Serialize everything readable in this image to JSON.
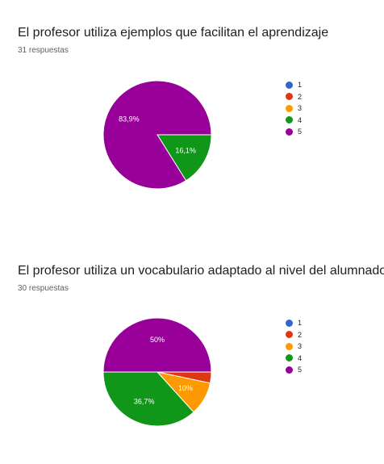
{
  "chart_data": [
    {
      "type": "pie",
      "title": "El profesor utiliza ejemplos que facilitan el aprendizaje",
      "subtitle": "31 respuestas",
      "categories": [
        "1",
        "2",
        "3",
        "4",
        "5"
      ],
      "values": [
        0,
        0,
        0,
        16.1,
        83.9
      ],
      "labels": [
        "",
        "",
        "",
        "16,1%",
        "83,9%"
      ],
      "colors": [
        "#3366cc",
        "#dc3912",
        "#ff9900",
        "#109618",
        "#990099"
      ],
      "legend_position": "right"
    },
    {
      "type": "pie",
      "title": "El profesor utiliza un vocabulario adaptado al nivel del alumnado",
      "subtitle": "30 respuestas",
      "categories": [
        "1",
        "2",
        "3",
        "4",
        "5"
      ],
      "values": [
        0,
        3.3,
        10,
        36.7,
        50
      ],
      "labels": [
        "",
        "",
        "10%",
        "36,7%",
        "50%"
      ],
      "colors": [
        "#3366cc",
        "#dc3912",
        "#ff9900",
        "#109618",
        "#990099"
      ],
      "legend_position": "right"
    }
  ]
}
